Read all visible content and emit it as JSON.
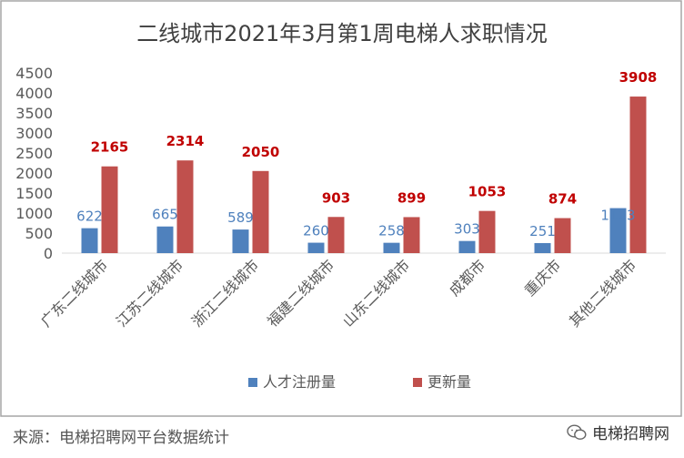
{
  "footer": {
    "source": "来源：电梯招聘网平台数据统计",
    "brand": "电梯招聘网"
  },
  "colors": {
    "series_blue": "#4f81bd",
    "series_red": "#c0504d",
    "label_blue": "#4f81bd",
    "label_red": "#c00000",
    "axis_text": "#595959",
    "title_text": "#404040",
    "grid": "#d9d9d9",
    "border": "#a6a6a6"
  },
  "chart_data": {
    "type": "bar",
    "title": "二线城市2021年3月第1周电梯人求职情况",
    "xlabel": "",
    "ylabel": "",
    "ylim": [
      0,
      4500
    ],
    "yticks": [
      0,
      500,
      1000,
      1500,
      2000,
      2500,
      3000,
      3500,
      4000,
      4500
    ],
    "grid": false,
    "legend_position": "bottom",
    "categories": [
      "广东二线城市",
      "江苏二线城市",
      "浙江二线城市",
      "福建二线城市",
      "山东二线城市",
      "成都市",
      "重庆市",
      "其他二线城市"
    ],
    "series": [
      {
        "name": "人才注册量",
        "values": [
          622,
          665,
          589,
          260,
          258,
          303,
          251,
          1123
        ]
      },
      {
        "name": "更新量",
        "values": [
          2165,
          2314,
          2050,
          903,
          899,
          1053,
          874,
          3908
        ]
      }
    ]
  }
}
